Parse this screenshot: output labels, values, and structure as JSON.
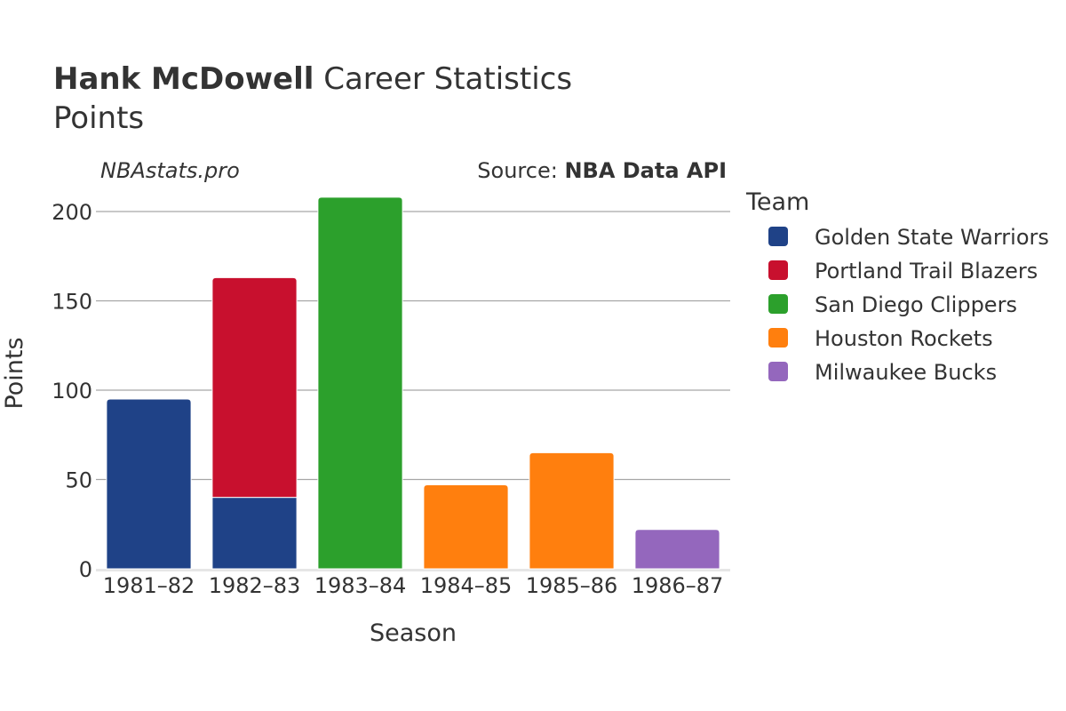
{
  "chart_data": {
    "type": "bar",
    "stacked": true,
    "title": {
      "player": "Hank McDowell",
      "suffix": "Career Statistics",
      "subtitle": "Points"
    },
    "watermark": "NBAstats.pro",
    "source": {
      "prefix": "Source: ",
      "name": "NBA Data API"
    },
    "xlabel": "Season",
    "ylabel": "Points",
    "ylim": [
      0,
      210
    ],
    "yticks": [
      0,
      50,
      100,
      150,
      200
    ],
    "grid": true,
    "legend": {
      "title": "Team",
      "placement": "right"
    },
    "categories": [
      "1981–82",
      "1982–83",
      "1983–84",
      "1984–85",
      "1985–86",
      "1986–87"
    ],
    "series": [
      {
        "name": "Golden State Warriors",
        "color": "#1f4287",
        "values": [
          95,
          40,
          0,
          0,
          0,
          0
        ]
      },
      {
        "name": "Portland Trail Blazers",
        "color": "#c8102e",
        "values": [
          0,
          123,
          0,
          0,
          0,
          0
        ]
      },
      {
        "name": "San Diego Clippers",
        "color": "#2ca02c",
        "values": [
          0,
          0,
          208,
          0,
          0,
          0
        ]
      },
      {
        "name": "Houston Rockets",
        "color": "#ff7f0e",
        "values": [
          0,
          0,
          0,
          47,
          65,
          0
        ]
      },
      {
        "name": "Milwaukee Bucks",
        "color": "#9467bd",
        "values": [
          0,
          0,
          0,
          0,
          0,
          22
        ]
      }
    ]
  }
}
